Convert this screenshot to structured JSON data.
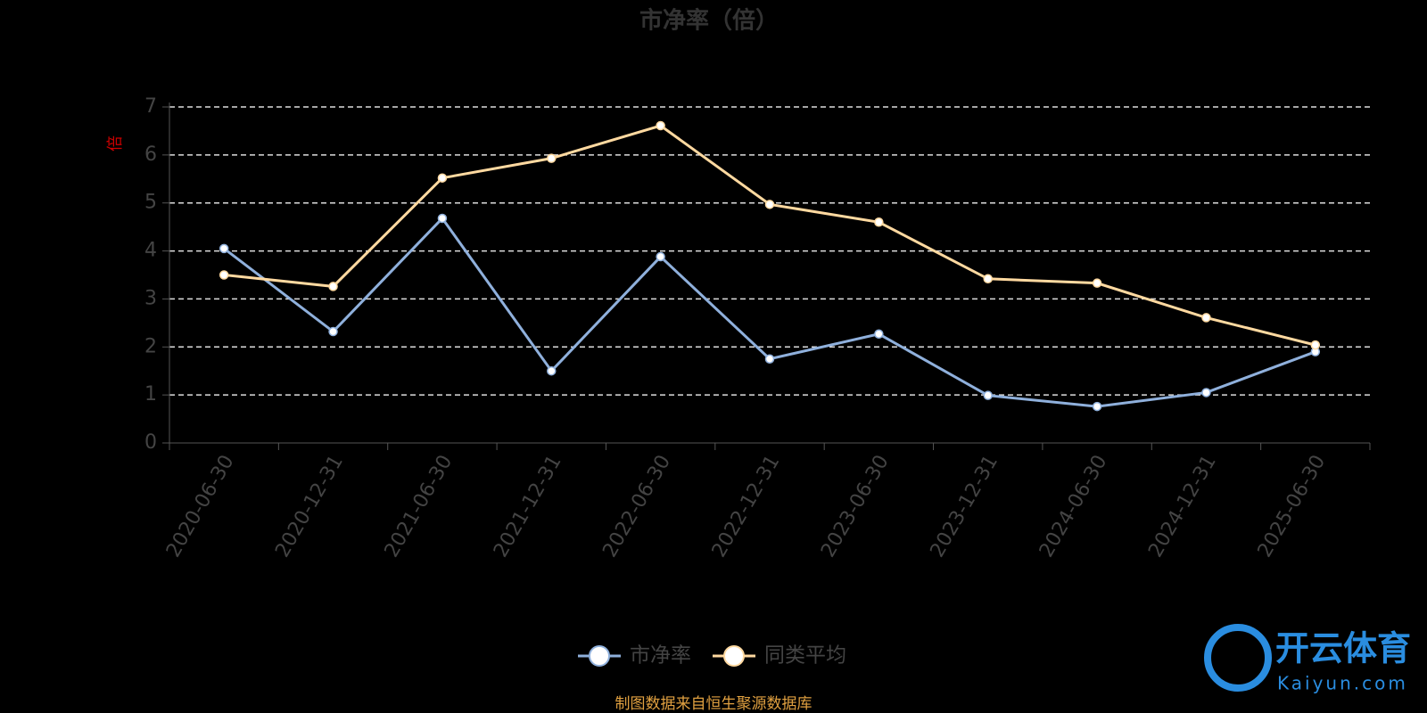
{
  "chart_data": {
    "type": "line",
    "title": "市净率（倍）",
    "y_label": "倍",
    "categories": [
      "2020-06-30",
      "2020-12-31",
      "2021-06-30",
      "2021-12-31",
      "2022-06-30",
      "2022-12-31",
      "2023-06-30",
      "2023-12-31",
      "2024-06-30",
      "2024-12-31",
      "2025-06-30"
    ],
    "series": [
      {
        "name": "市净率",
        "color": "#8fb0dc",
        "values": [
          4.05,
          2.32,
          4.68,
          1.5,
          3.88,
          1.75,
          2.27,
          0.99,
          0.76,
          1.05,
          1.9
        ]
      },
      {
        "name": "同类平均",
        "color": "#ffd9a0",
        "values": [
          3.5,
          3.26,
          5.52,
          5.93,
          6.61,
          4.97,
          4.6,
          3.42,
          3.33,
          2.61,
          2.04
        ]
      }
    ],
    "ylim": [
      0,
      7
    ],
    "yticks": [
      0,
      1,
      2,
      3,
      4,
      5,
      6,
      7
    ],
    "grid": true,
    "source": "制图数据来自恒生聚源数据库",
    "watermark": {
      "brand": "开云体育",
      "site": "Kaiyun.com"
    }
  }
}
